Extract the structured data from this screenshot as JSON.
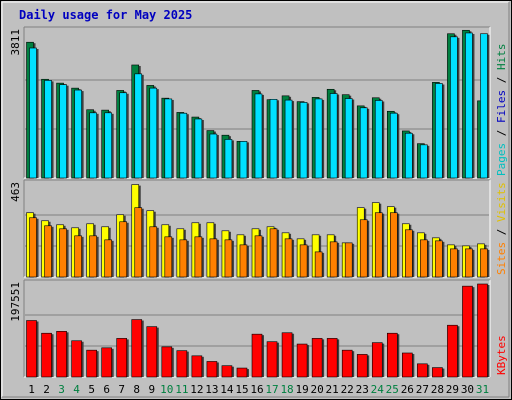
{
  "colors": {
    "frame": "#c0c0c0",
    "plot_bg": "#c0c0c0",
    "title": "#0000c0",
    "hits": "#008040",
    "files": "#00e0ff",
    "pages": "#00a0c0",
    "visits": "#ffff00",
    "sites": "#ff8000",
    "kbytes": "#ff0000",
    "weekend_day": "#008040",
    "weekday": "#000000"
  },
  "chart_data": {
    "type": "bar",
    "title": "Daily usage for May 2025",
    "days": [
      "1",
      "2",
      "3",
      "4",
      "5",
      "6",
      "7",
      "8",
      "9",
      "10",
      "11",
      "12",
      "13",
      "14",
      "15",
      "16",
      "17",
      "18",
      "19",
      "20",
      "21",
      "22",
      "23",
      "24",
      "25",
      "26",
      "27",
      "28",
      "29",
      "30",
      "31"
    ],
    "weekend_days": [
      "3",
      "4",
      "10",
      "11",
      "17",
      "18",
      "24",
      "25",
      "31"
    ],
    "panels": [
      {
        "id": "hits_files",
        "ymax_label": "3811",
        "ymax": 3811,
        "legend": [
          {
            "text": "Pages",
            "color": "#00c0c0"
          },
          {
            "text": " / ",
            "color": "#000000"
          },
          {
            "text": "Files",
            "color": "#0000c0"
          },
          {
            "text": " / ",
            "color": "#000000"
          },
          {
            "text": "Hits",
            "color": "#008040"
          }
        ],
        "series": [
          {
            "name": "Hits",
            "color": "#008040",
            "values": [
              3520,
              2560,
              2460,
              2330,
              1770,
              1760,
              2270,
              2930,
              2400,
              2070,
              1700,
              1580,
              1230,
              1110,
              950,
              2270,
              2030,
              2130,
              1980,
              2090,
              2300,
              2160,
              1870,
              2080,
              1730,
              1220,
              890,
              2480,
              3740,
              3830,
              2000
            ]
          },
          {
            "name": "Files",
            "color": "#00e0ff",
            "values": [
              3370,
              2530,
              2420,
              2280,
              1690,
              1690,
              2210,
              2700,
              2330,
              2050,
              1680,
              1530,
              1140,
              1000,
              950,
              2180,
              2040,
              2020,
              1960,
              2050,
              2190,
              2060,
              1820,
              2010,
              1680,
              1160,
              860,
              2450,
              3660,
              3760,
              3740
            ]
          }
        ]
      },
      {
        "id": "visits_sites",
        "ymax_label": "463",
        "ymax": 463,
        "legend": [
          {
            "text": "Sites",
            "color": "#ff8000"
          },
          {
            "text": " / ",
            "color": "#000000"
          },
          {
            "text": "Visits",
            "color": "#e0c000"
          }
        ],
        "series": [
          {
            "name": "Visits",
            "color": "#ffff00",
            "values": [
              320,
              280,
              260,
              245,
              265,
              250,
              310,
              460,
              330,
              260,
              240,
              270,
              270,
              230,
              210,
              240,
              250,
              220,
              190,
              210,
              210,
              170,
              345,
              370,
              350,
              265,
              220,
              195,
              160,
              155,
              165
            ]
          },
          {
            "name": "Sites",
            "color": "#ff8000",
            "values": [
              295,
              255,
              240,
              205,
              205,
              185,
              275,
              345,
              250,
              200,
              185,
              200,
              190,
              185,
              160,
              205,
              240,
              190,
              160,
              125,
              175,
              170,
              285,
              320,
              320,
              235,
              185,
              180,
              140,
              140,
              140
            ]
          }
        ]
      },
      {
        "id": "kbytes",
        "ymax_label": "197551",
        "ymax": 197551,
        "legend": [
          {
            "text": "KBytes",
            "color": "#ff0000"
          }
        ],
        "series": [
          {
            "name": "KBytes",
            "color": "#ff0000",
            "values": [
              120000,
              93000,
              97000,
              77000,
              57000,
              62000,
              82000,
              122000,
              107000,
              64000,
              56000,
              45000,
              33000,
              24000,
              19000,
              91000,
              75000,
              94000,
              70000,
              82000,
              82000,
              57000,
              48000,
              73000,
              93000,
              51000,
              28000,
              20000,
              110000,
              193000,
              197551
            ]
          }
        ]
      }
    ]
  }
}
